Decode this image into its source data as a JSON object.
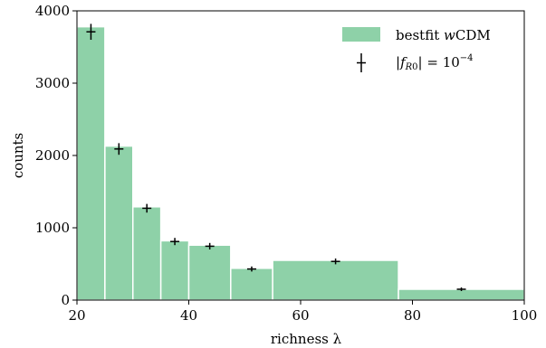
{
  "chart_data": {
    "type": "bar",
    "xlabel": "richness λ",
    "ylabel": "counts",
    "xlim": [
      20,
      100
    ],
    "ylim": [
      0,
      4000
    ],
    "xticks": [
      20,
      40,
      60,
      80,
      100
    ],
    "yticks": [
      0,
      1000,
      2000,
      3000,
      4000
    ],
    "grid": false,
    "legend_position": "top-right",
    "histogram": {
      "name": "bestfit wCDM",
      "color": "#8ed1a8",
      "bins": [
        {
          "x0": 20,
          "x1": 25,
          "value": 3780
        },
        {
          "x0": 25,
          "x1": 30,
          "value": 2130
        },
        {
          "x0": 30,
          "x1": 35,
          "value": 1290
        },
        {
          "x0": 35,
          "x1": 40,
          "value": 820
        },
        {
          "x0": 40,
          "x1": 47.5,
          "value": 760
        },
        {
          "x0": 47.5,
          "x1": 55,
          "value": 440
        },
        {
          "x0": 55,
          "x1": 77.5,
          "value": 550
        },
        {
          "x0": 77.5,
          "x1": 100,
          "value": 150
        }
      ]
    },
    "points": {
      "name": "|f_R0| = 10^-4",
      "color": "#000000",
      "data": [
        {
          "x": 22.5,
          "y": 3710,
          "err": 110
        },
        {
          "x": 27.5,
          "y": 2090,
          "err": 80
        },
        {
          "x": 32.5,
          "y": 1270,
          "err": 60
        },
        {
          "x": 37.5,
          "y": 810,
          "err": 50
        },
        {
          "x": 43.75,
          "y": 745,
          "err": 45
        },
        {
          "x": 51.25,
          "y": 430,
          "err": 35
        },
        {
          "x": 66.25,
          "y": 535,
          "err": 40
        },
        {
          "x": 88.75,
          "y": 150,
          "err": 25
        }
      ]
    }
  }
}
